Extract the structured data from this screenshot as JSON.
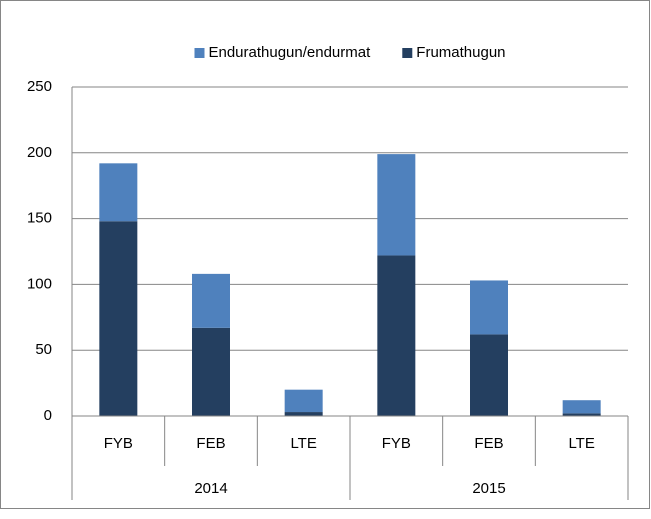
{
  "chart_data": {
    "type": "stacked_bar",
    "categories": [
      "FYB",
      "FEB",
      "LTE",
      "FYB",
      "FEB",
      "LTE"
    ],
    "groups": [
      "2014",
      "2015"
    ],
    "series": [
      {
        "name": "Endurathugun/endurmat",
        "color": "#4f81bd",
        "values": [
          44,
          41,
          17,
          77,
          41,
          10
        ]
      },
      {
        "name": "Frumathugun",
        "color": "#243f60",
        "values": [
          148,
          67,
          3,
          122,
          62,
          2
        ]
      }
    ],
    "ylim": [
      0,
      250
    ],
    "yticks": [
      0,
      50,
      100,
      150,
      200,
      250
    ],
    "grid": true,
    "legend": "top"
  }
}
